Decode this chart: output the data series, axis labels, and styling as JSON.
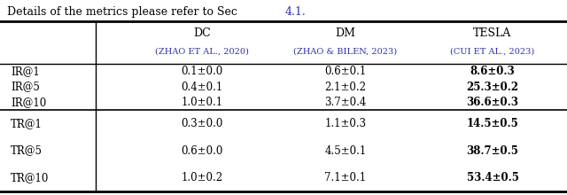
{
  "caption_text": "Details of the metrics please refer to Sec ",
  "caption_link": "4.1.",
  "caption_link_color": "#3333aa",
  "col_headers": [
    "DC",
    "DM",
    "TESLA"
  ],
  "col_subheaders_main": [
    "ZHAO ET AL., 2020",
    "ZHAO & BILEN, 2023",
    "CUI ET AL., 2023"
  ],
  "col_subheaders_prefix": [
    "(",
    "(",
    "("
  ],
  "col_subheaders_suffix": [
    ")",
    ")",
    ")"
  ],
  "col_subheader_color": "#3333aa",
  "row_groups": [
    {
      "rows": [
        {
          "label": "IR@1",
          "values": [
            "0.1±0.0",
            "0.6±0.1",
            "8.6±0.3"
          ],
          "bold": [
            false,
            false,
            true
          ]
        },
        {
          "label": "IR@5",
          "values": [
            "0.4±0.1",
            "2.1±0.2",
            "25.3±0.2"
          ],
          "bold": [
            false,
            false,
            true
          ]
        },
        {
          "label": "IR@10",
          "values": [
            "1.0±0.1",
            "3.7±0.4",
            "36.6±0.3"
          ],
          "bold": [
            false,
            false,
            true
          ]
        }
      ]
    },
    {
      "rows": [
        {
          "label": "TR@1",
          "values": [
            "0.3±0.0",
            "1.1±0.3",
            "14.5±0.5"
          ],
          "bold": [
            false,
            false,
            true
          ]
        },
        {
          "label": "TR@5",
          "values": [
            "0.6±0.0",
            "4.5±0.1",
            "38.7±0.5"
          ],
          "bold": [
            false,
            false,
            true
          ]
        },
        {
          "label": "TR@10",
          "values": [
            "1.0±0.2",
            "7.1±0.1",
            "53.4±0.5"
          ],
          "bold": [
            false,
            false,
            true
          ]
        }
      ]
    }
  ],
  "background_color": "#ffffff",
  "text_color": "#000000",
  "line_color": "#000000",
  "figsize": [
    6.4,
    2.2
  ],
  "dpi": 100
}
